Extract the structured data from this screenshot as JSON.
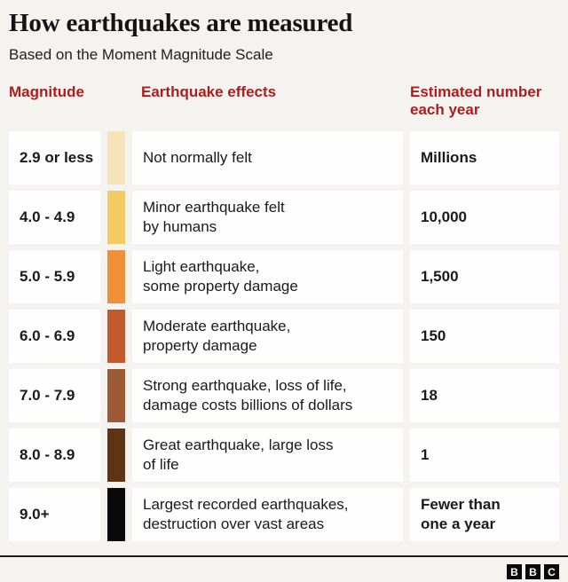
{
  "page": {
    "title": "How earthquakes are measured",
    "subtitle": "Based on the Moment Magnitude Scale"
  },
  "table": {
    "headers": {
      "magnitude": "Magnitude",
      "effects": "Earthquake effects",
      "estimate": "Estimated number\neach year"
    },
    "rows": [
      {
        "magnitude": "2.9 or less",
        "swatch_color": "#f7e3ba",
        "effects": "Not normally felt",
        "estimate": "Millions"
      },
      {
        "magnitude": "4.0 - 4.9",
        "swatch_color": "#f4ca62",
        "effects": "Minor earthquake felt\nby humans",
        "estimate": "10,000"
      },
      {
        "magnitude": "5.0 - 5.9",
        "swatch_color": "#f0913a",
        "effects": "Light earthquake,\nsome property damage",
        "estimate": "1,500"
      },
      {
        "magnitude": "6.0 - 6.9",
        "swatch_color": "#c35a2e",
        "effects": "Moderate earthquake,\nproperty damage",
        "estimate": "150"
      },
      {
        "magnitude": "7.0 - 7.9",
        "swatch_color": "#9e5a34",
        "effects": "Strong earthquake, loss of life,\ndamage costs billions of dollars",
        "estimate": "18"
      },
      {
        "magnitude": "8.0 - 8.9",
        "swatch_color": "#5f3415",
        "effects": "Great earthquake, large loss\nof life",
        "estimate": "1"
      },
      {
        "magnitude": "9.0+",
        "swatch_color": "#0a0a0a",
        "effects": "Largest recorded earthquakes,\ndestruction over vast areas",
        "estimate": "Fewer than\none a year"
      }
    ]
  },
  "footer": {
    "logo_letters": [
      "B",
      "B",
      "C"
    ]
  },
  "colors": {
    "background": "#f4f3f0",
    "card": "#fefefe",
    "header_red": "#b01c1c",
    "text": "#1a1a1a"
  },
  "chart_data": {
    "type": "table",
    "title": "How earthquakes are measured",
    "subtitle": "Based on the Moment Magnitude Scale",
    "columns": [
      "Magnitude",
      "Earthquake effects",
      "Estimated number each year"
    ],
    "rows": [
      [
        "2.9 or less",
        "Not normally felt",
        "Millions"
      ],
      [
        "4.0 - 4.9",
        "Minor earthquake felt by humans",
        "10,000"
      ],
      [
        "5.0 - 5.9",
        "Light earthquake, some property damage",
        "1,500"
      ],
      [
        "6.0 - 6.9",
        "Moderate earthquake, property damage",
        "150"
      ],
      [
        "7.0 - 7.9",
        "Strong earthquake, loss of life, damage costs billions of dollars",
        "18"
      ],
      [
        "8.0 - 8.9",
        "Great earthquake, large loss of life",
        "1"
      ],
      [
        "9.0+",
        "Largest recorded earthquakes, destruction over vast areas",
        "Fewer than one a year"
      ]
    ],
    "swatch_colors": [
      "#f7e3ba",
      "#f4ca62",
      "#f0913a",
      "#c35a2e",
      "#9e5a34",
      "#5f3415",
      "#0a0a0a"
    ],
    "legend_position": "none",
    "grid": false
  }
}
